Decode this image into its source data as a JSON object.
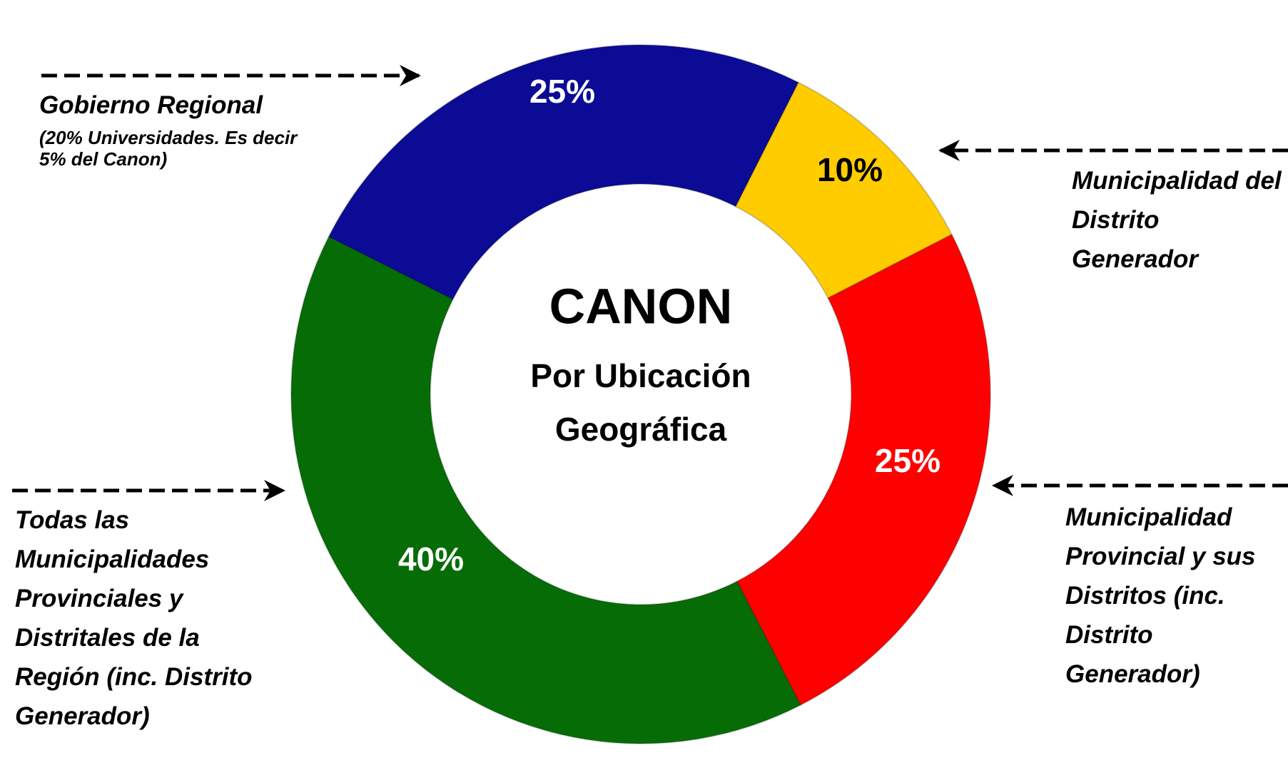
{
  "chart_data": {
    "type": "donut",
    "title": "CANON",
    "subtitle": "Por Ubicación Geográfica",
    "categories": [
      "Gobierno Regional",
      "Municipalidad del Distrito Generador",
      "Municipalidad Provincial y sus Distritos (inc. Distrito Generador)",
      "Todas las Municipalidades Provinciales y Distritales de la Región (inc. Distrito Generador)"
    ],
    "annotations": [
      "(20% Universidades. Es decir 5% del Canon)"
    ],
    "series": [
      {
        "name": "Canon",
        "values": [
          25,
          10,
          25,
          40
        ],
        "value_labels": [
          "25%",
          "10%",
          "25%",
          "40%"
        ],
        "colors": [
          "#0b0b96",
          "#ffcc00",
          "#ff0000",
          "#066d06"
        ]
      }
    ]
  }
}
